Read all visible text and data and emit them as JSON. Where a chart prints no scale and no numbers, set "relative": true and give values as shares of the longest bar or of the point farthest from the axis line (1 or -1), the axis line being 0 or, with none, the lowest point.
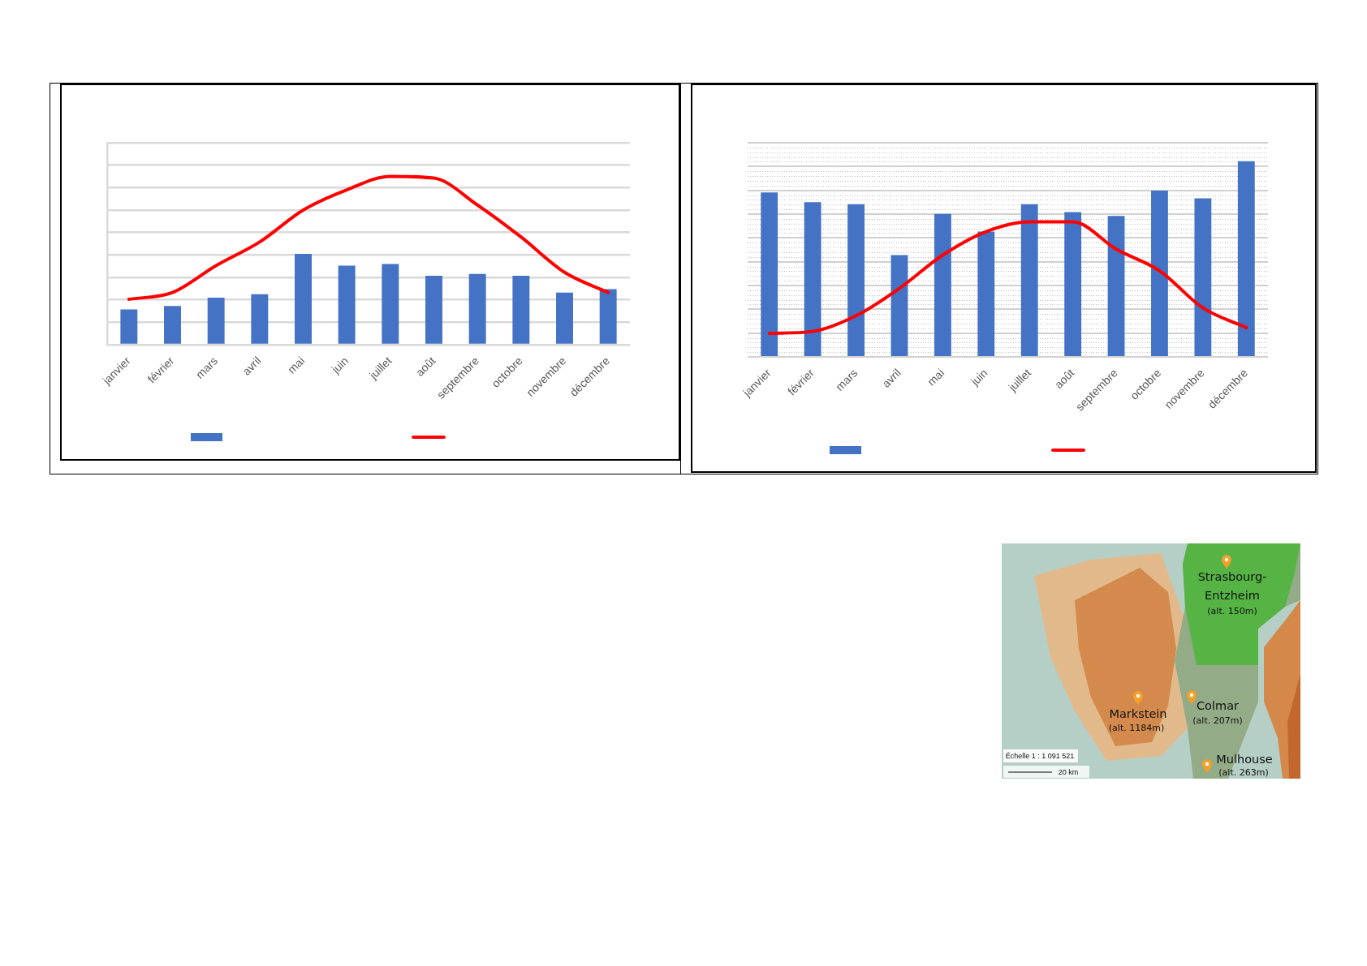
{
  "chart_data": [
    {
      "type": "bar",
      "relative": true,
      "categories": [
        "janvier",
        "février",
        "mars",
        "avril",
        "mai",
        "juin",
        "juillet",
        "août",
        "septembre",
        "octobre",
        "novembre",
        "décembre"
      ],
      "series": [
        {
          "type": "bar",
          "color": "#4472c4",
          "values": [
            0.21,
            0.23,
            0.28,
            0.3,
            0.54,
            0.47,
            0.48,
            0.41,
            0.42,
            0.41,
            0.31,
            0.33
          ]
        },
        {
          "type": "line",
          "color": "#ff0000",
          "values": [
            0.27,
            0.31,
            0.47,
            0.61,
            0.8,
            0.92,
            1,
            0.99,
            0.83,
            0.64,
            0.43,
            0.31
          ]
        }
      ],
      "grid": "y",
      "marker": "none"
    },
    {
      "type": "bar",
      "relative": true,
      "categories": [
        "janvier",
        "février",
        "mars",
        "avril",
        "mai",
        "juin",
        "juillet",
        "août",
        "septembre",
        "octobre",
        "novembre",
        "décembre"
      ],
      "series": [
        {
          "type": "bar",
          "color": "#4472c4",
          "values": [
            0.84,
            0.79,
            0.78,
            0.52,
            0.73,
            0.64,
            0.78,
            0.74,
            0.72,
            0.85,
            0.81,
            1
          ]
        },
        {
          "type": "line",
          "color": "#ff0000",
          "values": [
            0.12,
            0.13,
            0.21,
            0.35,
            0.52,
            0.64,
            0.69,
            0.69,
            0.55,
            0.44,
            0.25,
            0.15
          ]
        }
      ],
      "grid": "y",
      "marker": "none"
    },
    {
      "type": "other",
      "annotations": [
        "Strasbourg-Entzheim",
        "(alt. 150m)",
        "Markstein",
        "(alt. 1184m)",
        "Colmar",
        "(alt. 207m)",
        "Mulhouse",
        "(alt. 263m)",
        "Échelle 1 : 1 091 521",
        "20 km"
      ]
    }
  ]
}
